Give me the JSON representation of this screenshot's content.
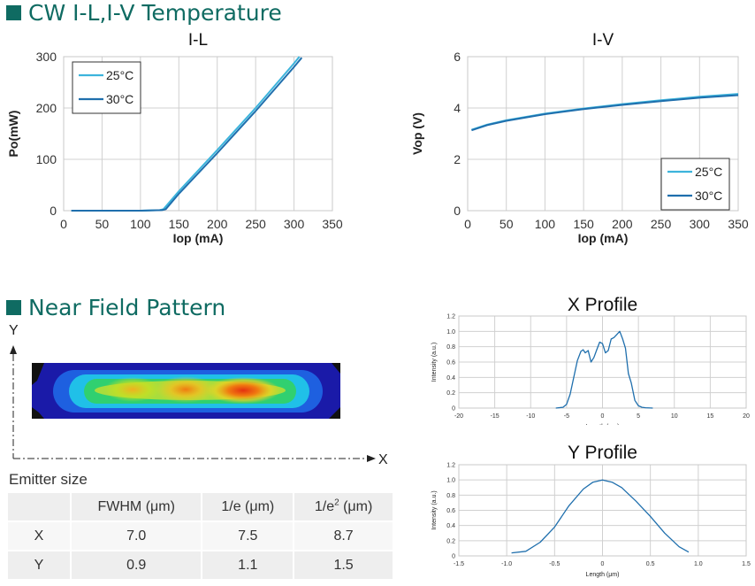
{
  "sections": {
    "temperature_title": "CW I-L,I-V Temperature",
    "nearfield_title": "Near Field Pattern"
  },
  "nearfield_axes": {
    "y": "Y",
    "x": "X"
  },
  "emitter": {
    "label": "Emitter size",
    "headers": [
      "",
      "FWHM (μm)",
      "1/e  (μm)",
      "1/e2  (μm)"
    ],
    "rows": [
      [
        "X",
        "7.0",
        "7.5",
        "8.7"
      ],
      [
        "Y",
        "0.9",
        "1.1",
        "1.5"
      ]
    ]
  },
  "chart_data": [
    {
      "id": "il",
      "type": "line",
      "title": "I-L",
      "xlabel": "Iop (mA)",
      "ylabel": "Po(mW)",
      "xlim": [
        0,
        350
      ],
      "ylim": [
        0,
        300
      ],
      "xticks": [
        0,
        50,
        100,
        150,
        200,
        250,
        300,
        350
      ],
      "yticks": [
        0,
        100,
        200,
        300
      ],
      "grid": true,
      "legend_position": "top-left",
      "series": [
        {
          "name": "25°C",
          "color": "#3cb4dc",
          "x": [
            10,
            50,
            100,
            125,
            130,
            150,
            200,
            250,
            300,
            307
          ],
          "y": [
            0,
            0,
            0,
            1,
            3,
            38,
            118,
            200,
            287,
            300
          ]
        },
        {
          "name": "30°C",
          "color": "#1f6fad",
          "x": [
            10,
            50,
            100,
            128,
            133,
            150,
            200,
            250,
            300,
            310
          ],
          "y": [
            0,
            0,
            0,
            1,
            3,
            33,
            112,
            194,
            280,
            298
          ]
        }
      ]
    },
    {
      "id": "iv",
      "type": "line",
      "title": "I-V",
      "xlabel": "Iop (mA)",
      "ylabel": "Vop (V)",
      "xlim": [
        0,
        350
      ],
      "ylim": [
        0,
        6
      ],
      "xticks": [
        0,
        50,
        100,
        150,
        200,
        250,
        300,
        350
      ],
      "yticks": [
        0,
        2,
        4,
        6
      ],
      "grid": true,
      "legend_position": "bottom-right",
      "series": [
        {
          "name": "25°C",
          "color": "#3cb4dc",
          "x": [
            5,
            25,
            50,
            100,
            150,
            200,
            250,
            300,
            350
          ],
          "y": [
            3.15,
            3.35,
            3.52,
            3.78,
            3.98,
            4.15,
            4.3,
            4.44,
            4.55
          ]
        },
        {
          "name": "30°C",
          "color": "#1f6fad",
          "x": [
            5,
            25,
            50,
            100,
            150,
            200,
            250,
            300,
            350
          ],
          "y": [
            3.13,
            3.33,
            3.5,
            3.76,
            3.96,
            4.12,
            4.27,
            4.4,
            4.5
          ]
        }
      ]
    },
    {
      "id": "xprofile",
      "type": "line",
      "title": "X Profile",
      "xlabel": "Length (μm)",
      "ylabel": "Intensity (a.u.)",
      "xlim": [
        -20,
        20
      ],
      "ylim": [
        0,
        1.2
      ],
      "xticks": [
        -20,
        -15,
        -10,
        -5,
        0,
        5,
        10,
        15,
        20
      ],
      "yticks": [
        0,
        0.2,
        0.4,
        0.6,
        0.8,
        1.0,
        1.2
      ],
      "grid": true,
      "series": [
        {
          "name": "",
          "color": "#1f6fad",
          "x": [
            -6.5,
            -5.5,
            -5,
            -4.5,
            -4,
            -3.5,
            -3,
            -2.7,
            -2.4,
            -2,
            -1.6,
            -1.2,
            -0.8,
            -0.4,
            0,
            0.4,
            0.8,
            1.2,
            1.6,
            2,
            2.4,
            2.8,
            3.2,
            3.6,
            4,
            4.5,
            5,
            5.5,
            6,
            7
          ],
          "y": [
            0,
            0.01,
            0.05,
            0.18,
            0.4,
            0.62,
            0.74,
            0.76,
            0.72,
            0.75,
            0.6,
            0.66,
            0.76,
            0.86,
            0.84,
            0.72,
            0.75,
            0.9,
            0.92,
            0.96,
            1.0,
            0.9,
            0.78,
            0.45,
            0.33,
            0.1,
            0.03,
            0.01,
            0.005,
            0
          ]
        }
      ]
    },
    {
      "id": "yprofile",
      "type": "line",
      "title": "Y Profile",
      "xlabel": "Length (μm)",
      "ylabel": "Intensity (a.u.)",
      "xlim": [
        -1.5,
        1.5
      ],
      "ylim": [
        0,
        1.2
      ],
      "xticks": [
        -1.5,
        -1.0,
        -0.5,
        0,
        0.5,
        1.0,
        1.5
      ],
      "yticks": [
        0,
        0.2,
        0.4,
        0.6,
        0.8,
        1.0,
        1.2
      ],
      "grid": true,
      "series": [
        {
          "name": "",
          "color": "#1f6fad",
          "x": [
            -0.95,
            -0.8,
            -0.65,
            -0.5,
            -0.35,
            -0.2,
            -0.1,
            0,
            0.1,
            0.2,
            0.35,
            0.5,
            0.65,
            0.8,
            0.9
          ],
          "y": [
            0.04,
            0.06,
            0.18,
            0.38,
            0.66,
            0.88,
            0.97,
            1.0,
            0.97,
            0.9,
            0.72,
            0.52,
            0.3,
            0.12,
            0.05
          ]
        }
      ]
    }
  ]
}
